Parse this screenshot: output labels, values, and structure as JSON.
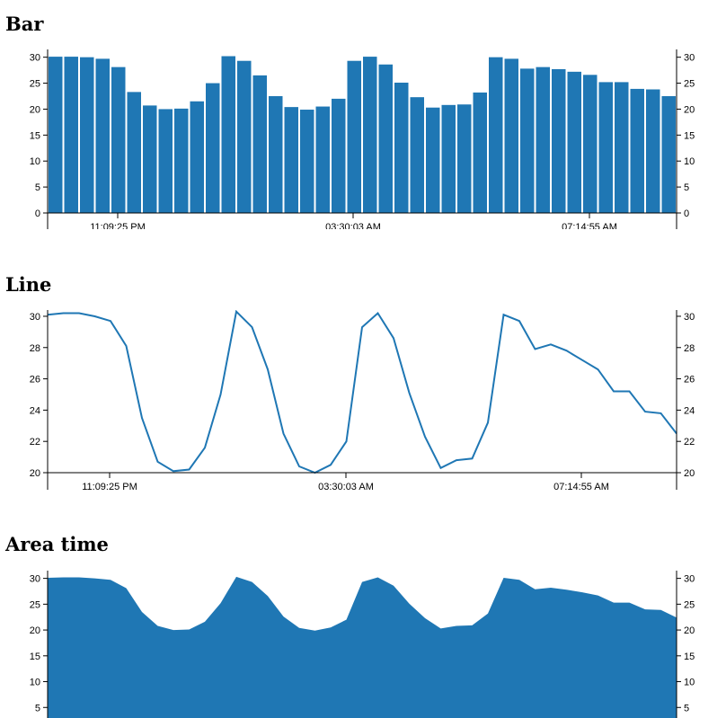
{
  "chart_data": [
    {
      "type": "bar",
      "title": "Bar",
      "x_tick_labels": [
        "11:09:25 PM",
        "03:30:03 AM",
        "07:14:55 AM"
      ],
      "y_ticks": [
        0,
        5,
        10,
        15,
        20,
        25,
        30
      ],
      "ylim": [
        0,
        31.5
      ],
      "grid": false,
      "legend": "none",
      "color": "#1f77b4",
      "series": [
        {
          "values": [
            30.1,
            30.1,
            30.0,
            29.7,
            28.1,
            23.3,
            20.7,
            20.0,
            20.1,
            21.5,
            25.0,
            30.2,
            29.3,
            26.5,
            22.5,
            20.4,
            19.9,
            20.5,
            22.0,
            29.3,
            30.1,
            28.6,
            25.1,
            22.3,
            20.3,
            20.8,
            20.9,
            23.2,
            30.0,
            29.7,
            27.8,
            28.1,
            27.7,
            27.2,
            26.6,
            25.2,
            25.2,
            23.9,
            23.8,
            22.5
          ]
        }
      ]
    },
    {
      "type": "line",
      "title": "Line",
      "x_tick_labels": [
        "11:09:25 PM",
        "03:30:03 AM",
        "07:14:55 AM"
      ],
      "y_ticks": [
        20,
        22,
        24,
        26,
        28,
        30
      ],
      "ylim": [
        20,
        30.4
      ],
      "grid": false,
      "legend": "none",
      "color": "#1f77b4",
      "series": [
        {
          "values": [
            30.1,
            30.2,
            30.2,
            30.0,
            29.7,
            28.1,
            23.5,
            20.7,
            20.1,
            20.2,
            21.6,
            25.0,
            30.3,
            29.3,
            26.6,
            22.5,
            20.4,
            20.0,
            20.5,
            22.0,
            29.3,
            30.2,
            28.6,
            25.1,
            22.3,
            20.3,
            20.8,
            20.9,
            23.2,
            30.1,
            29.7,
            27.9,
            28.2,
            27.8,
            27.2,
            26.6,
            25.2,
            25.2,
            23.9,
            23.8,
            22.5
          ]
        }
      ]
    },
    {
      "type": "area",
      "title": "Area time",
      "y_ticks": [
        5,
        10,
        15,
        20,
        25,
        30
      ],
      "ylim": [
        0,
        31.5
      ],
      "grid": false,
      "legend": "none",
      "color": "#1f77b4",
      "series": [
        {
          "values": [
            30.1,
            30.2,
            30.2,
            30.0,
            29.7,
            28.1,
            23.5,
            20.8,
            20.0,
            20.1,
            21.6,
            25.2,
            30.3,
            29.3,
            26.6,
            22.6,
            20.4,
            19.9,
            20.5,
            22.0,
            29.3,
            30.2,
            28.6,
            25.1,
            22.3,
            20.3,
            20.8,
            20.9,
            23.2,
            30.1,
            29.7,
            27.9,
            28.2,
            27.8,
            27.3,
            26.7,
            25.3,
            25.3,
            24.0,
            23.9,
            22.4
          ]
        }
      ]
    }
  ]
}
